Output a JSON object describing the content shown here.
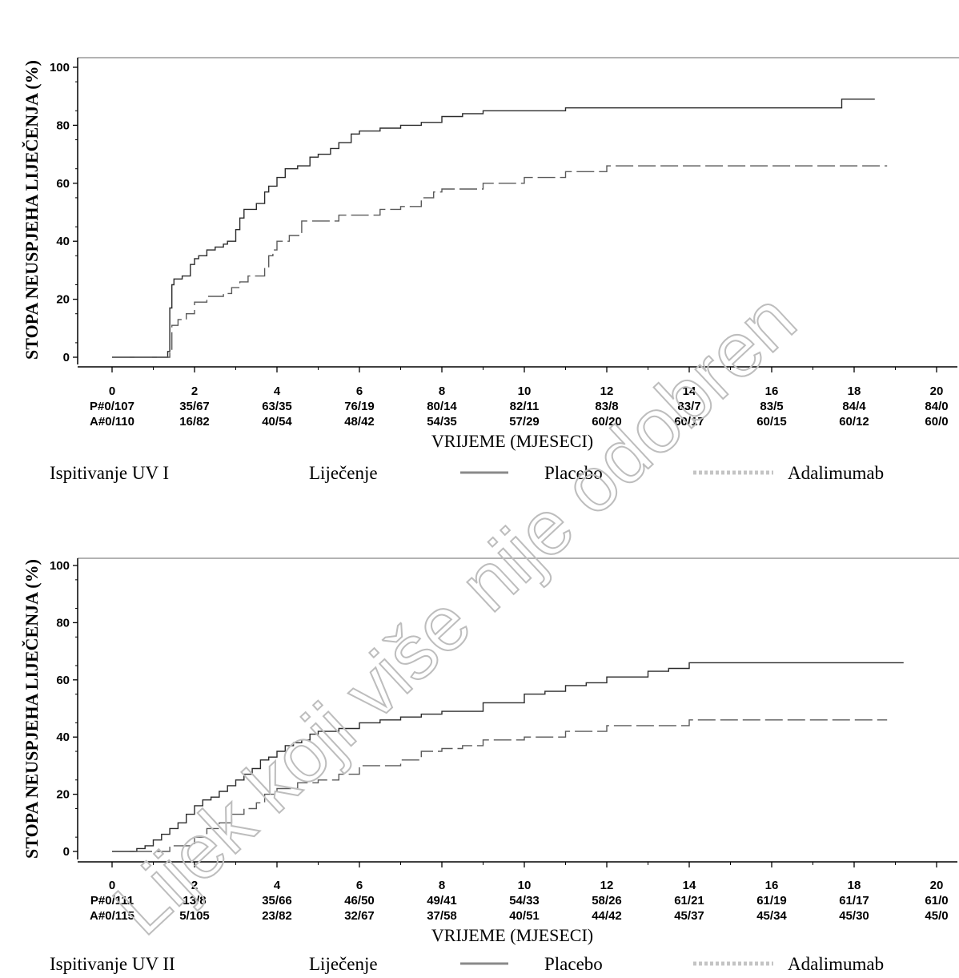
{
  "chart_data": [
    {
      "type": "line",
      "ylabel": "STOPA NEUSPJEHA LIJEČENJA (%)",
      "xlabel": "VRIJEME (MJESECI)",
      "xlim": [
        0,
        20
      ],
      "ylim": [
        0,
        100
      ],
      "xticks": [
        0,
        2,
        4,
        6,
        8,
        10,
        12,
        14,
        16,
        18,
        20
      ],
      "yticks": [
        0,
        20,
        40,
        60,
        80,
        100
      ],
      "grid": false,
      "series": [
        {
          "name": "Placebo",
          "style": "solid",
          "x": [
            0,
            1.3,
            1.35,
            1.4,
            1.45,
            1.5,
            1.7,
            1.9,
            2.0,
            2.1,
            2.3,
            2.5,
            2.7,
            2.8,
            3.0,
            3.1,
            3.2,
            3.5,
            3.7,
            3.8,
            4.0,
            4.2,
            4.5,
            4.8,
            5.0,
            5.3,
            5.5,
            5.8,
            6.0,
            6.5,
            7.0,
            7.5,
            8.0,
            8.5,
            9.0,
            10.0,
            11.0,
            12.0,
            14.0,
            17.5,
            17.7,
            18.5
          ],
          "y": [
            0,
            0,
            2,
            17,
            25,
            27,
            28,
            32,
            34,
            35,
            37,
            38,
            39,
            40,
            44,
            48,
            51,
            53,
            57,
            59,
            62,
            65,
            66,
            69,
            70,
            72,
            74,
            77,
            78,
            79,
            80,
            81,
            83,
            84,
            85,
            85,
            86,
            86,
            86,
            86,
            89,
            89
          ]
        },
        {
          "name": "Adalimumab",
          "style": "dashed",
          "x": [
            0,
            1.3,
            1.4,
            1.45,
            1.6,
            1.8,
            2.0,
            2.3,
            2.7,
            2.9,
            3.1,
            3.3,
            3.7,
            3.8,
            3.9,
            4.0,
            4.3,
            4.6,
            5.5,
            6.5,
            7.0,
            7.5,
            7.8,
            8.0,
            9.0,
            10.0,
            11.0,
            12.0,
            18.8
          ],
          "y": [
            0,
            0,
            2,
            11,
            13,
            15,
            19,
            21,
            22,
            24,
            26,
            28,
            31,
            35,
            37,
            40,
            42,
            47,
            49,
            51,
            52,
            55,
            57,
            58,
            60,
            62,
            64,
            66,
            66
          ]
        }
      ],
      "risk_table": {
        "rows": [
          {
            "label": "P#",
            "values": [
              "0/107",
              "35/67",
              "63/35",
              "76/19",
              "80/14",
              "82/11",
              "83/8",
              "83/7",
              "83/5",
              "84/4",
              "84/0"
            ]
          },
          {
            "label": "A#",
            "values": [
              "0/110",
              "16/82",
              "40/54",
              "48/42",
              "54/35",
              "57/29",
              "60/20",
              "60/17",
              "60/15",
              "60/12",
              "60/0"
            ]
          }
        ]
      },
      "legend": {
        "position": "bottom",
        "study_label": "Ispitivanje UV I",
        "treatment_label": "Liječenje",
        "items": [
          "Placebo",
          "Adalimumab"
        ]
      }
    },
    {
      "type": "line",
      "ylabel": "STOPA NEUSPJEHA LIJEČENJA (%)",
      "xlabel": "VRIJEME (MJESECI)",
      "xlim": [
        0,
        20
      ],
      "ylim": [
        0,
        100
      ],
      "xticks": [
        0,
        2,
        4,
        6,
        8,
        10,
        12,
        14,
        16,
        18,
        20
      ],
      "yticks": [
        0,
        20,
        40,
        60,
        80,
        100
      ],
      "grid": false,
      "series": [
        {
          "name": "Placebo",
          "style": "solid",
          "x": [
            0,
            0.6,
            0.8,
            1.0,
            1.2,
            1.4,
            1.6,
            1.8,
            2.0,
            2.2,
            2.4,
            2.6,
            2.8,
            3.0,
            3.2,
            3.4,
            3.6,
            3.8,
            4.0,
            4.2,
            4.4,
            4.6,
            4.8,
            5.0,
            5.5,
            6.0,
            6.5,
            7.0,
            7.5,
            8.0,
            9.0,
            10.0,
            10.5,
            11.0,
            11.5,
            12.0,
            13.0,
            13.5,
            14.0,
            19.2
          ],
          "y": [
            0,
            1,
            2,
            4,
            6,
            8,
            10,
            13,
            16,
            18,
            19,
            21,
            23,
            25,
            27,
            29,
            32,
            33,
            35,
            37,
            38,
            39,
            41,
            42,
            43,
            45,
            46,
            47,
            48,
            49,
            52,
            55,
            56,
            58,
            59,
            61,
            63,
            64,
            66,
            66
          ]
        },
        {
          "name": "Adalimumab",
          "style": "dashed",
          "x": [
            0,
            1.4,
            2.0,
            2.3,
            2.6,
            2.9,
            3.2,
            3.5,
            3.7,
            4.0,
            4.5,
            5.0,
            5.5,
            6.0,
            7.0,
            7.5,
            8.0,
            8.5,
            9.0,
            10.0,
            11.0,
            12.0,
            14.0,
            18.8
          ],
          "y": [
            0,
            2,
            5,
            8,
            10,
            13,
            15,
            17,
            20,
            22,
            24,
            25,
            27,
            30,
            32,
            35,
            36,
            37,
            39,
            40,
            42,
            44,
            46,
            46
          ]
        }
      ],
      "risk_table": {
        "rows": [
          {
            "label": "P#",
            "values": [
              "0/111",
              "13/8",
              "35/66",
              "46/50",
              "49/41",
              "54/33",
              "58/26",
              "61/21",
              "61/19",
              "61/17",
              "61/0"
            ]
          },
          {
            "label": "A#",
            "values": [
              "0/115",
              "5/105",
              "23/82",
              "32/67",
              "37/58",
              "40/51",
              "44/42",
              "45/37",
              "45/34",
              "45/30",
              "45/0"
            ]
          }
        ]
      },
      "legend": {
        "position": "bottom",
        "study_label": "Ispitivanje UV II",
        "treatment_label": "Liječenje",
        "items": [
          "Placebo",
          "Adalimumab"
        ]
      }
    }
  ],
  "watermark": "Lijek koji više nije odobren"
}
